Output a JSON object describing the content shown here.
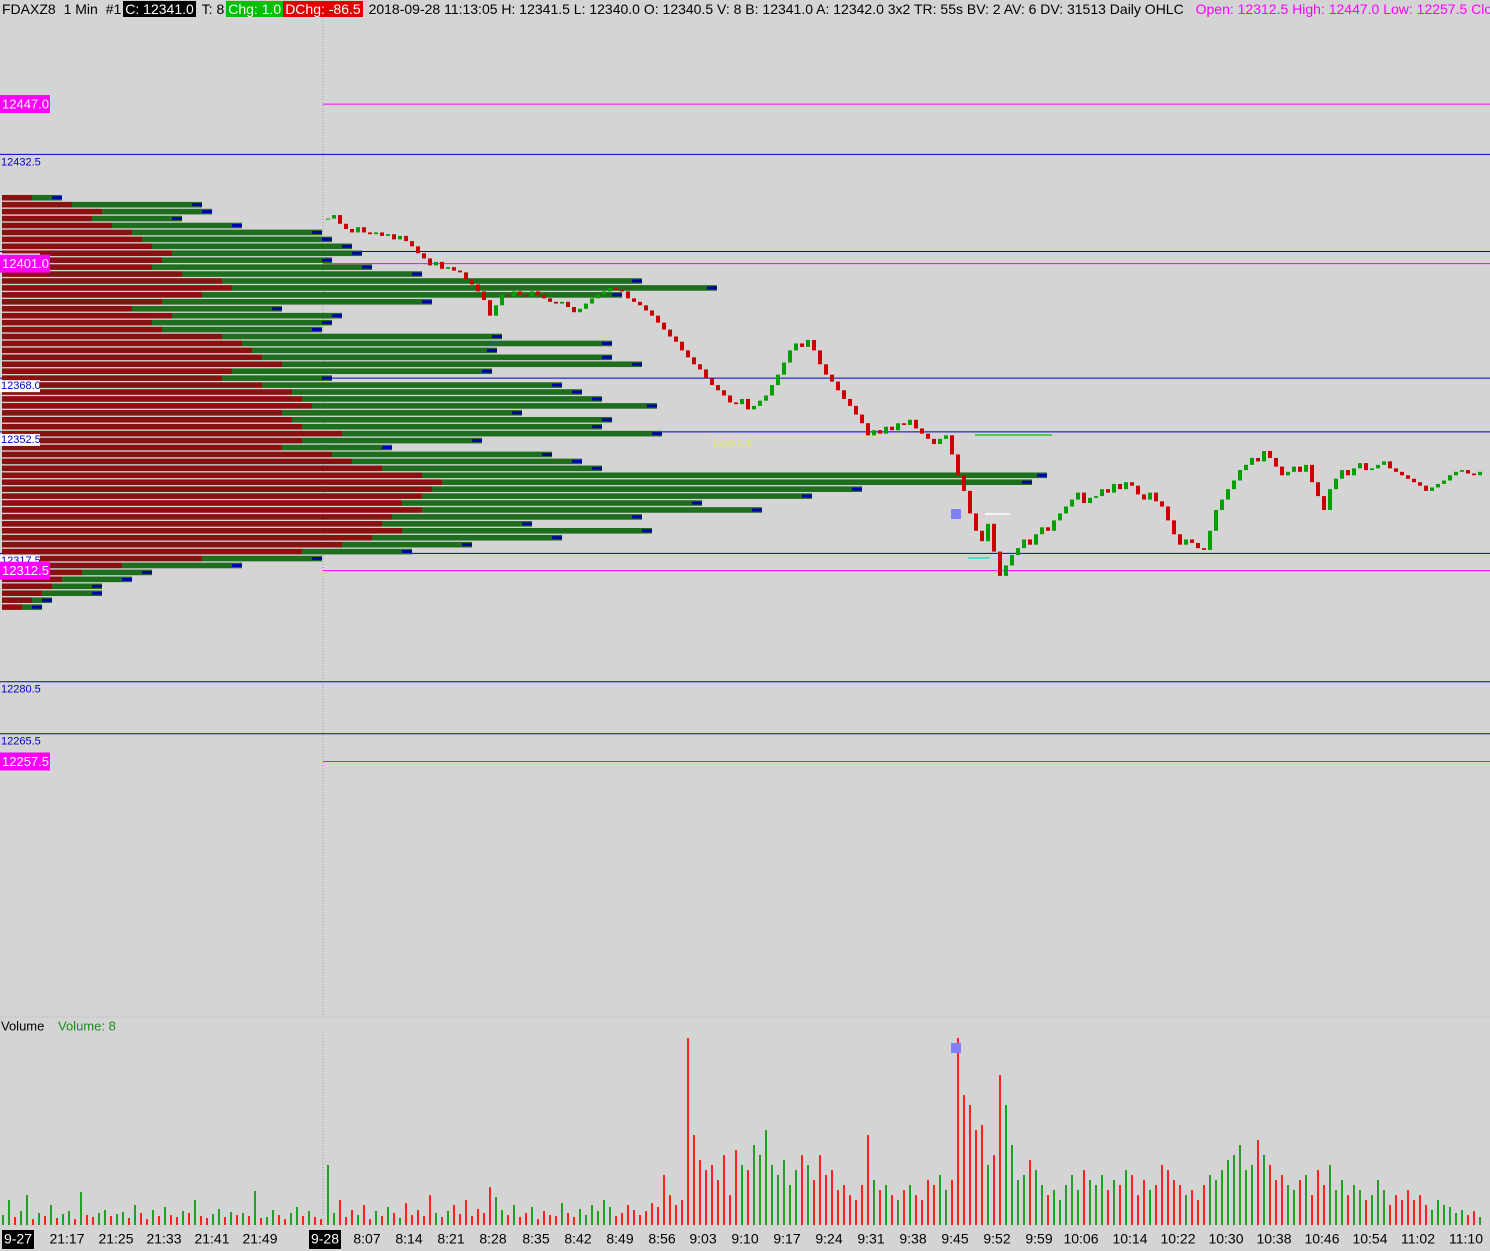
{
  "header": {
    "symbol": "FDAXZ8",
    "interval": "1 Min",
    "chart_number": "#1",
    "close": "C: 12341.0",
    "trades": "T: 8",
    "change": "Chg: 1.0",
    "daily_change": "DChg: -86.5",
    "details": "2018-09-28 11:13:05 H: 12341.5 L: 12340.0 O: 12340.5 V: 8 B: 12341.0 A: 12342.0 3x2 TR: 55s BV: 2 AV: 6 DV: 31513 Daily OHLC",
    "daily_ohlc": "Open: 12312.5  High: 12447.0  Low: 12257.5  Clo"
  },
  "chart_data": [
    {
      "type": "candlestick",
      "ylim": [
        12185,
        12477
      ],
      "colors": {
        "up": "#00a000",
        "down": "#cc0000",
        "profile_sell": "#8b1010",
        "profile_buy": "#1e6e1e",
        "profile_edge": "#0000aa",
        "level": "#0000cc",
        "key_level": "#ff00ff",
        "vwap": "#e8e85a"
      },
      "levels": [
        12432.5,
        12404.5,
        {
          "value": 12368,
          "label": "12368.0"
        },
        12352.5,
        12317.5,
        12280.5,
        12265.5
      ],
      "key_levels": [
        {
          "value": 12447,
          "label": "12447.0"
        },
        {
          "value": 12401,
          "label": "12401.0"
        },
        12312.5,
        12257.5
      ],
      "vwap": 12351.4,
      "closes": [
        12414,
        12415,
        12412.5,
        12411,
        12410,
        12411.5,
        12410,
        12409.5,
        12410,
        12409,
        12409.5,
        12408,
        12409,
        12407.5,
        12406,
        12404,
        12402.5,
        12400.5,
        12401.5,
        12399.5,
        12400,
        12399,
        12398.5,
        12396.5,
        12395,
        12393,
        12390.5,
        12386,
        12389,
        12392,
        12391.5,
        12393,
        12392,
        12391.5,
        12393,
        12392,
        12391,
        12390,
        12389.5,
        12390,
        12388.5,
        12387,
        12388,
        12389.5,
        12391,
        12392,
        12393,
        12394,
        12393.5,
        12393,
        12391,
        12390,
        12389,
        12387.5,
        12386,
        12384,
        12382,
        12380,
        12378.5,
        12376,
        12374,
        12372,
        12370.5,
        12368,
        12366,
        12364.5,
        12363,
        12361,
        12360.5,
        12362,
        12359,
        12360,
        12361.5,
        12363,
        12366,
        12369,
        12372.5,
        12376,
        12378,
        12377,
        12379,
        12376,
        12372,
        12369,
        12367,
        12364.5,
        12362,
        12360,
        12357.5,
        12355,
        12351.5,
        12353,
        12352,
        12354,
        12353,
        12355,
        12354.5,
        12356,
        12353.5,
        12352,
        12350.5,
        12349,
        12350.5,
        12351.5,
        12346,
        12340,
        12335.5,
        12329,
        12324,
        12321,
        12326,
        12318,
        12311,
        12314,
        12317,
        12319,
        12321.5,
        12320,
        12323,
        12325,
        12324,
        12327,
        12329,
        12331,
        12333,
        12335,
        12332,
        12333.5,
        12334,
        12336,
        12335,
        12337.5,
        12336,
        12338,
        12337,
        12334.5,
        12333,
        12335,
        12332.5,
        12331,
        12327,
        12323,
        12320,
        12321.5,
        12320.5,
        12319,
        12318.5,
        12324,
        12330,
        12333,
        12336,
        12338.5,
        12341.5,
        12343,
        12345,
        12344,
        12347,
        12345,
        12342.5,
        12340,
        12341,
        12342.5,
        12341,
        12343,
        12338,
        12334,
        12330,
        12336,
        12339,
        12341.5,
        12340,
        12342,
        12343.5,
        12341.5,
        12342,
        12343,
        12344,
        12342,
        12341,
        12340,
        12339,
        12338,
        12337,
        12335.5,
        12336.5,
        12337.5,
        12338.5,
        12340,
        12341,
        12341.5,
        12340.5,
        12340,
        12341
      ],
      "profile": {
        "prices": [
          12420,
          12418,
          12416,
          12414,
          12412,
          12410,
          12408,
          12406,
          12404,
          12402,
          12400,
          12398,
          12396,
          12394,
          12392,
          12390,
          12388,
          12386,
          12384,
          12382,
          12380,
          12378,
          12376,
          12374,
          12372,
          12370,
          12368,
          12366,
          12364,
          12362,
          12360,
          12358,
          12356,
          12354,
          12352,
          12350,
          12348,
          12346,
          12344,
          12342,
          12340,
          12338,
          12336,
          12334,
          12332,
          12330,
          12328,
          12326,
          12324,
          12322,
          12320,
          12318,
          12316,
          12314,
          12312,
          12310,
          12308,
          12306,
          12304,
          12302
        ],
        "sell": [
          30,
          70,
          100,
          90,
          110,
          130,
          140,
          150,
          170,
          160,
          150,
          180,
          220,
          230,
          200,
          160,
          130,
          170,
          150,
          160,
          220,
          240,
          250,
          260,
          280,
          230,
          220,
          260,
          290,
          300,
          310,
          280,
          290,
          300,
          340,
          300,
          280,
          330,
          350,
          380,
          420,
          440,
          430,
          420,
          400,
          420,
          390,
          380,
          400,
          370,
          340,
          300,
          200,
          120,
          80,
          60,
          50,
          40,
          30,
          20
        ],
        "buy": [
          30,
          130,
          110,
          90,
          130,
          190,
          190,
          200,
          190,
          170,
          220,
          240,
          420,
          485,
          420,
          270,
          150,
          170,
          180,
          160,
          280,
          370,
          245,
          350,
          360,
          260,
          110,
          300,
          290,
          300,
          345,
          240,
          320,
          300,
          320,
          180,
          110,
          220,
          230,
          220,
          625,
          590,
          430,
          390,
          300,
          340,
          250,
          150,
          250,
          190,
          130,
          110,
          120,
          120,
          70,
          70,
          50,
          60,
          20,
          20
        ]
      }
    },
    {
      "type": "bar",
      "title": "Volume",
      "legend": "Volume: 8",
      "ylim": [
        0,
        190
      ],
      "colors": {
        "up": "#22a022",
        "down": "#ff2020",
        "legend": "#1e8c1e"
      },
      "night_values": [
        10,
        25,
        8,
        14,
        30,
        6,
        12,
        9,
        20,
        7,
        11,
        14,
        6,
        33,
        10,
        8,
        12,
        15,
        9,
        11,
        13,
        7,
        20,
        12,
        6,
        15,
        9,
        18,
        10,
        8,
        14,
        12,
        25,
        9,
        7,
        11,
        16,
        8,
        13,
        10,
        12,
        9,
        34,
        7,
        8,
        15,
        10,
        6,
        12,
        18,
        9,
        14,
        8,
        6
      ],
      "values": [
        60,
        12,
        25,
        8,
        15,
        10,
        20,
        6,
        14,
        9,
        18,
        12,
        7,
        22,
        10,
        15,
        9,
        30,
        12,
        8,
        14,
        20,
        11,
        25,
        9,
        16,
        12,
        38,
        28,
        15,
        10,
        20,
        8,
        12,
        18,
        6,
        14,
        10,
        9,
        22,
        12,
        8,
        16,
        10,
        20,
        14,
        25,
        18,
        9,
        12,
        20,
        15,
        10,
        14,
        22,
        18,
        50,
        30,
        20,
        25,
        187,
        90,
        65,
        55,
        60,
        45,
        70,
        30,
        75,
        60,
        55,
        80,
        70,
        95,
        60,
        50,
        65,
        40,
        55,
        70,
        60,
        45,
        70,
        50,
        55,
        35,
        40,
        30,
        25,
        40,
        90,
        45,
        35,
        40,
        30,
        25,
        35,
        40,
        30,
        25,
        45,
        40,
        50,
        35,
        45,
        187,
        130,
        120,
        95,
        100,
        60,
        70,
        150,
        120,
        80,
        45,
        50,
        65,
        55,
        40,
        30,
        35,
        25,
        40,
        50,
        35,
        55,
        45,
        40,
        50,
        35,
        45,
        40,
        55,
        50,
        30,
        45,
        35,
        40,
        60,
        55,
        45,
        40,
        30,
        35,
        25,
        40,
        50,
        45,
        55,
        65,
        70,
        80,
        55,
        60,
        85,
        70,
        60,
        45,
        50,
        40,
        35,
        45,
        50,
        30,
        55,
        40,
        60,
        35,
        45,
        30,
        40,
        35,
        25,
        30,
        45,
        35,
        20,
        30,
        25,
        35,
        25,
        30,
        20,
        15,
        25,
        20,
        18,
        12,
        15,
        10,
        14,
        8
      ],
      "time_labels": [
        "9-27",
        "21:17",
        "21:25",
        "21:33",
        "21:41",
        "21:49",
        "9-28",
        "8:07",
        "8:14",
        "8:21",
        "8:28",
        "8:35",
        "8:42",
        "8:49",
        "8:56",
        "9:03",
        "9:10",
        "9:17",
        "9:24",
        "9:31",
        "9:38",
        "9:45",
        "9:52",
        "9:59",
        "10:06",
        "10:14",
        "10:22",
        "10:30",
        "10:38",
        "10:46",
        "10:54",
        "11:02",
        "11:10"
      ]
    }
  ]
}
